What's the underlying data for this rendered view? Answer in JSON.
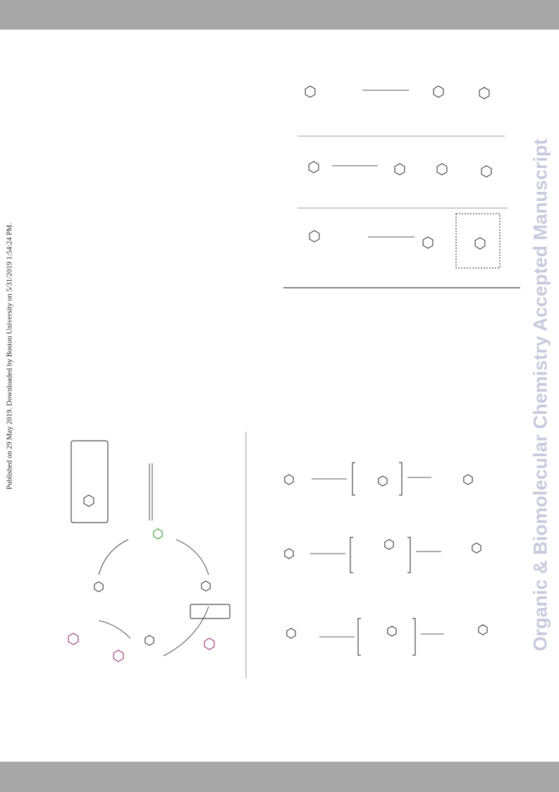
{
  "side_note": "Published on 29 May 2019. Downloaded by Boston University on 5/31/2019 1:54:24 PM.",
  "watermark": "Organic & Biomolecular Chemistry Accepted Manuscript"
}
